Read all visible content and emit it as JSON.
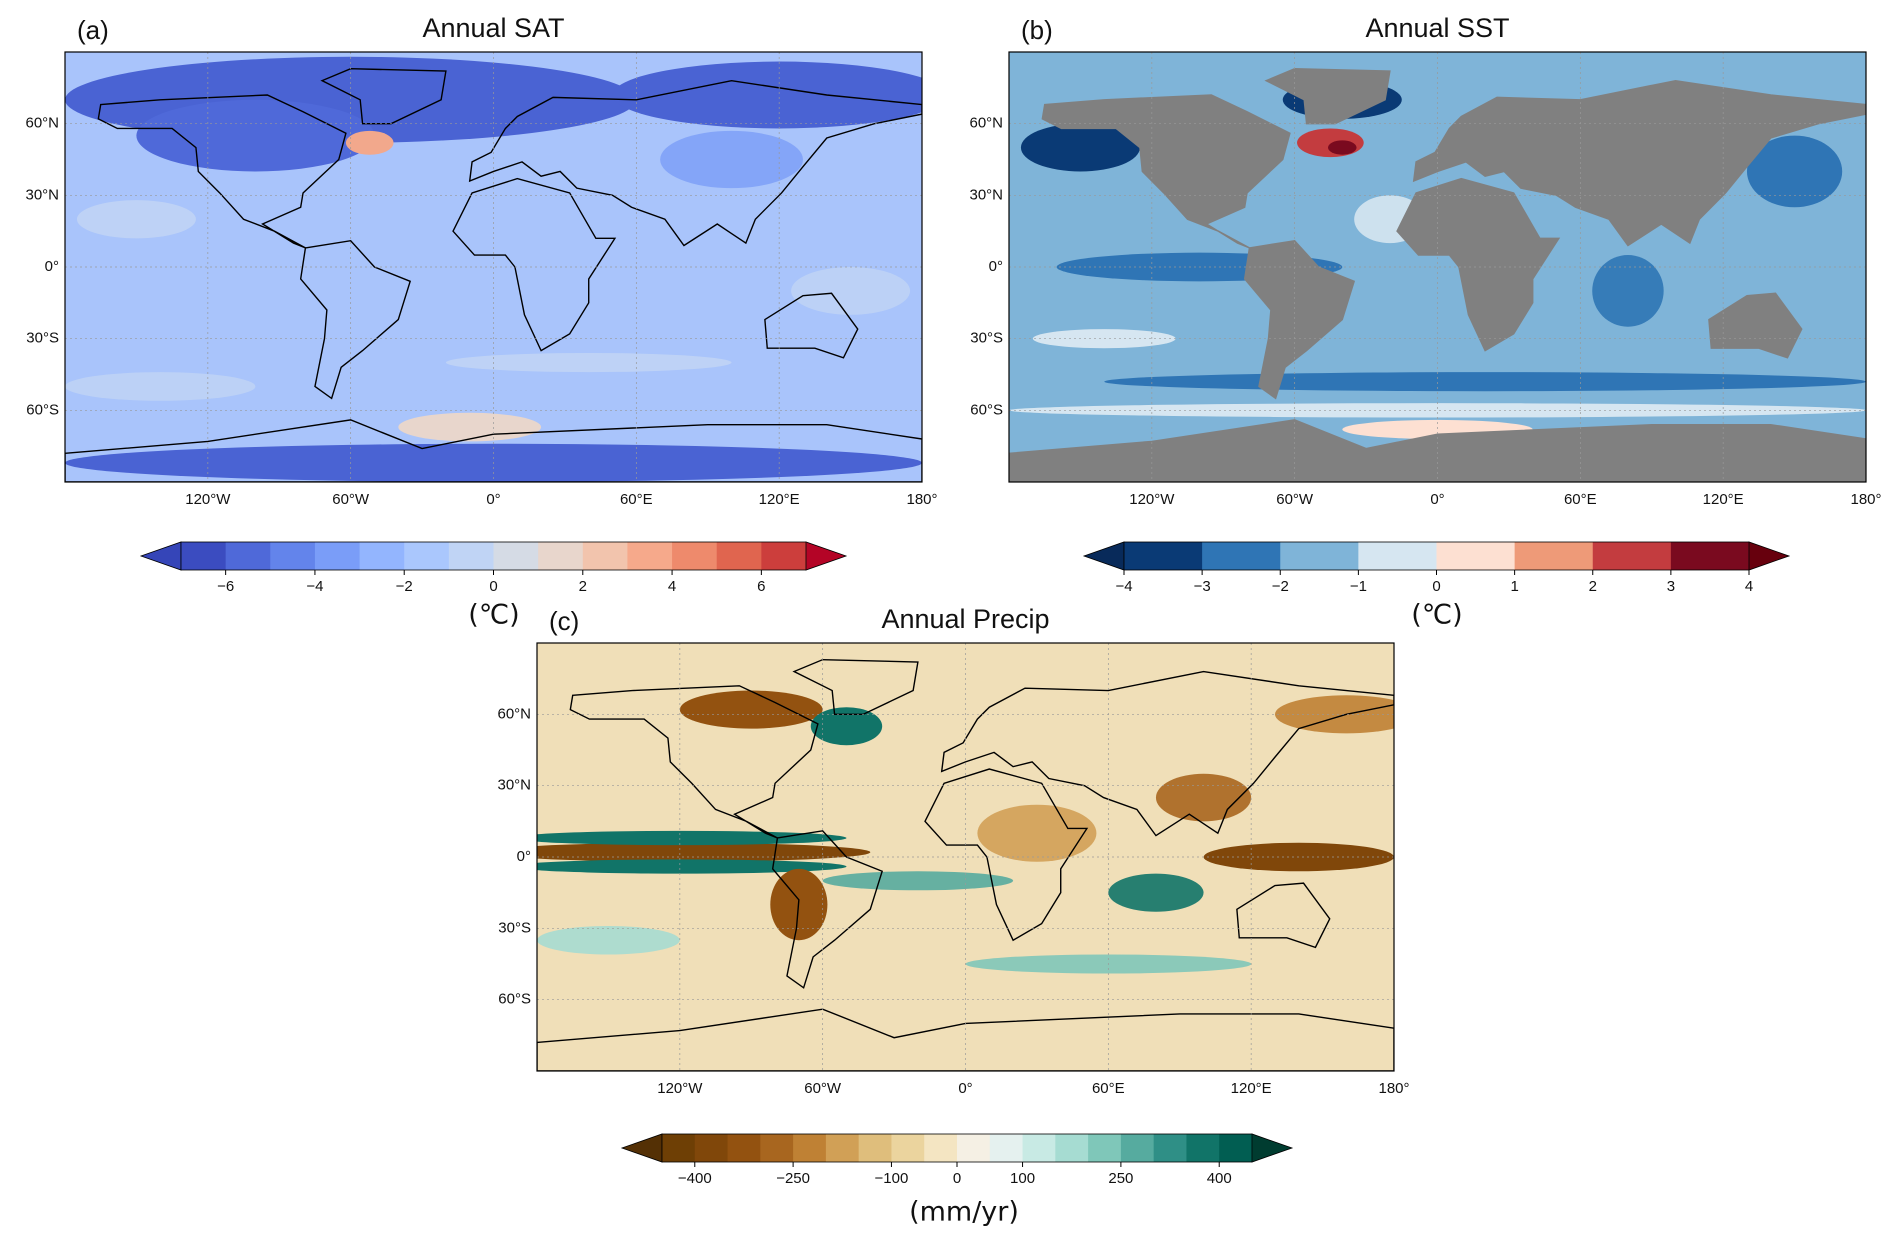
{
  "chart_data": [
    {
      "type": "map",
      "panel_label": "(a)",
      "title": "Annual SAT",
      "xlim": [
        -180,
        180
      ],
      "ylim": [
        -90,
        90
      ],
      "xticks": [
        {
          "value": -120,
          "label": "120°W"
        },
        {
          "value": -60,
          "label": "60°W"
        },
        {
          "value": 0,
          "label": "0°"
        },
        {
          "value": 60,
          "label": "60°E"
        },
        {
          "value": 120,
          "label": "120°E"
        },
        {
          "value": 180,
          "label": "180°"
        }
      ],
      "yticks": [
        {
          "value": -60,
          "label": "60°S"
        },
        {
          "value": -30,
          "label": "30°S"
        },
        {
          "value": 0,
          "label": "0°"
        },
        {
          "value": 30,
          "label": "30°N"
        },
        {
          "value": 60,
          "label": "60°N"
        }
      ],
      "grid": true,
      "colorbar": {
        "label": "(℃)",
        "lim": [
          -7,
          7
        ],
        "ticks": [
          {
            "value": -6,
            "label": "−6"
          },
          {
            "value": -4,
            "label": "−4"
          },
          {
            "value": -2,
            "label": "−2"
          },
          0,
          2,
          4,
          6
        ],
        "colors": [
          "#3b4cc0",
          "#4f69d9",
          "#6384eb",
          "#7a9df8",
          "#93b5fe",
          "#aac7fd",
          "#c0d4f5",
          "#d5dbe5",
          "#e8d6cc",
          "#f2c4ad",
          "#f6a98b",
          "#ee8a6c",
          "#e0654f",
          "#cc3e3c"
        ],
        "under_color": "#3545b8",
        "over_color": "#b40426"
      }
    },
    {
      "type": "map",
      "panel_label": "(b)",
      "title": "Annual SST",
      "xlim": [
        -180,
        180
      ],
      "ylim": [
        -90,
        90
      ],
      "xticks": [
        {
          "value": -120,
          "label": "120°W"
        },
        {
          "value": -60,
          "label": "60°W"
        },
        {
          "value": 0,
          "label": "0°"
        },
        {
          "value": 60,
          "label": "60°E"
        },
        {
          "value": 120,
          "label": "120°E"
        },
        {
          "value": 180,
          "label": "180°"
        }
      ],
      "yticks": [
        {
          "value": -60,
          "label": "60°S"
        },
        {
          "value": -30,
          "label": "30°S"
        },
        {
          "value": 0,
          "label": "0°"
        },
        {
          "value": 30,
          "label": "30°N"
        },
        {
          "value": 60,
          "label": "60°N"
        }
      ],
      "grid": true,
      "colorbar": {
        "label": "(℃)",
        "lim": [
          -4,
          4
        ],
        "ticks": [
          {
            "value": -4,
            "label": "−4"
          },
          {
            "value": -3,
            "label": "−3"
          },
          {
            "value": -2,
            "label": "−2"
          },
          {
            "value": -1,
            "label": "−1"
          },
          0,
          1,
          2,
          3,
          4
        ],
        "colors": [
          "#0a3a75",
          "#2f75b5",
          "#7fb4d8",
          "#d6e6f1",
          "#fde0d2",
          "#ee9a78",
          "#c33c3f",
          "#7a0a1f"
        ],
        "under_color": "#082a5a",
        "over_color": "#67000d"
      }
    },
    {
      "type": "map",
      "panel_label": "(c)",
      "title": "Annual Precip",
      "xlim": [
        -180,
        180
      ],
      "ylim": [
        -90,
        90
      ],
      "xticks": [
        {
          "value": -120,
          "label": "120°W"
        },
        {
          "value": -60,
          "label": "60°W"
        },
        {
          "value": 0,
          "label": "0°"
        },
        {
          "value": 60,
          "label": "60°E"
        },
        {
          "value": 120,
          "label": "120°E"
        },
        {
          "value": 180,
          "label": "180°"
        }
      ],
      "yticks": [
        {
          "value": -60,
          "label": "60°S"
        },
        {
          "value": -30,
          "label": "30°S"
        },
        {
          "value": 0,
          "label": "0°"
        },
        {
          "value": 30,
          "label": "30°N"
        },
        {
          "value": 60,
          "label": "60°N"
        }
      ],
      "grid": true,
      "colorbar": {
        "label": "(mm/yr)",
        "lim": [
          -450,
          450
        ],
        "ticks": [
          {
            "value": -400,
            "label": "−400"
          },
          {
            "value": -250,
            "label": "−250"
          },
          {
            "value": -100,
            "label": "−100"
          },
          0,
          100,
          250,
          400
        ],
        "colors": [
          "#6e3f05",
          "#80470a",
          "#935210",
          "#a8661f",
          "#bf8134",
          "#d1a056",
          "#dfbe7c",
          "#ebd49e",
          "#f4e5c2",
          "#f5f0e4",
          "#e5f1ef",
          "#c8eae4",
          "#a6dcd2",
          "#7fc7b9",
          "#56ab9f",
          "#2f8f86",
          "#117468",
          "#015e52"
        ],
        "under_color": "#543005",
        "over_color": "#003c30"
      }
    }
  ]
}
